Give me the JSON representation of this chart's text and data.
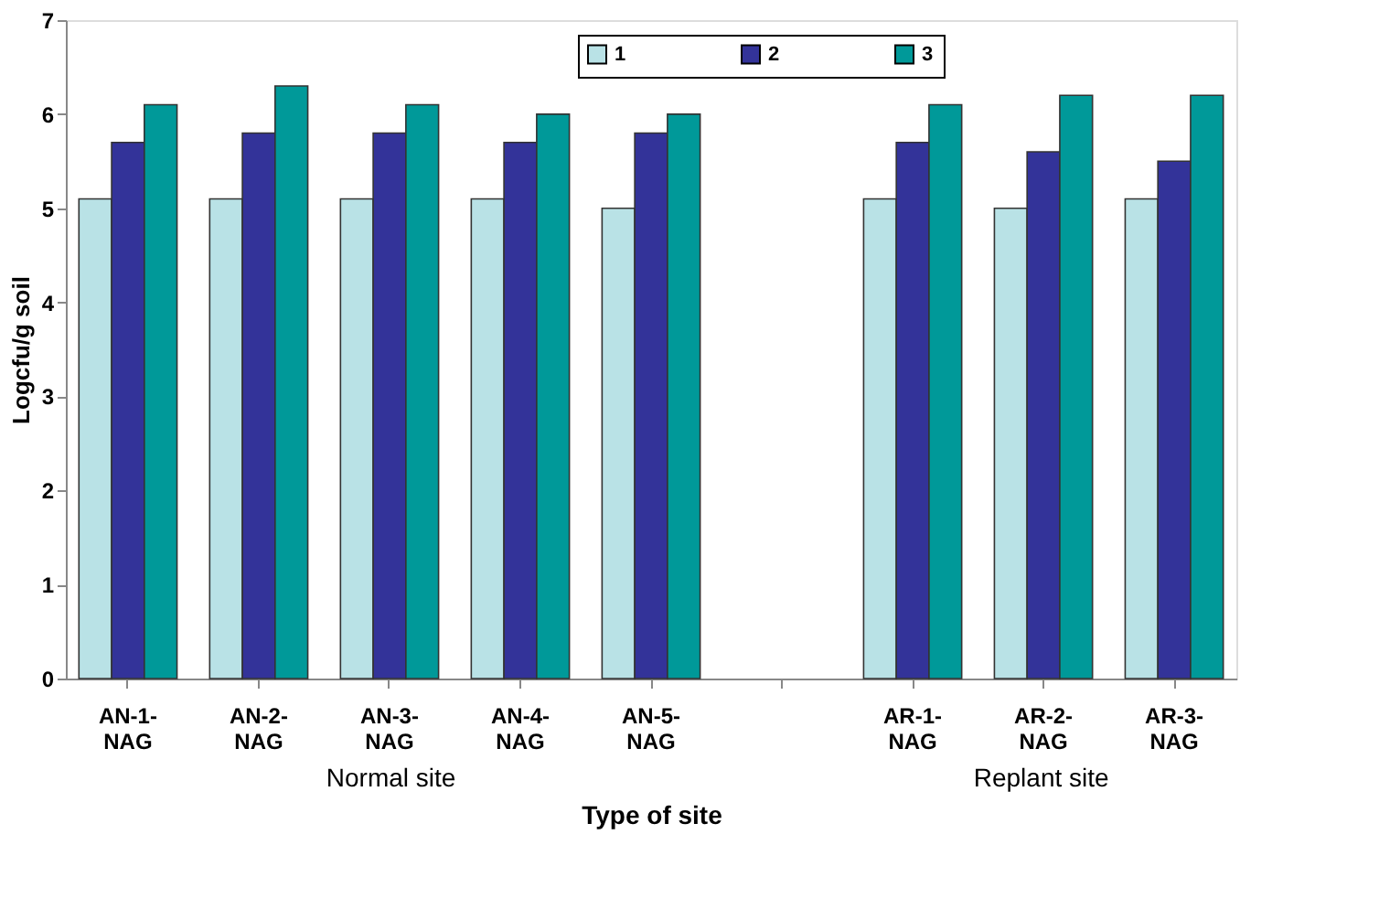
{
  "chart_data": {
    "type": "bar",
    "xlabel": "Type of site",
    "ylabel": "Logcfu/g soil",
    "categories": [
      "AN-1-NAG",
      "AN-2-NAG",
      "AN-3-NAG",
      "AN-4-NAG",
      "AN-5-NAG",
      null,
      "AR-1-NAG",
      "AR-2-NAG",
      "AR-3-NAG"
    ],
    "series": [
      {
        "name": "1",
        "color": "#b9e2e6",
        "values": [
          5.1,
          5.1,
          5.1,
          5.1,
          5.0,
          null,
          5.1,
          5.0,
          5.1
        ]
      },
      {
        "name": "2",
        "color": "#333399",
        "values": [
          5.7,
          5.8,
          5.8,
          5.7,
          5.8,
          null,
          5.7,
          5.6,
          5.5
        ]
      },
      {
        "name": "3",
        "color": "#009999",
        "values": [
          6.1,
          6.3,
          6.1,
          6.0,
          6.0,
          null,
          6.1,
          6.2,
          6.2
        ]
      }
    ],
    "ylim": [
      0,
      7
    ],
    "yticks": [
      0,
      1,
      2,
      3,
      4,
      5,
      6,
      7
    ],
    "grid": false,
    "legend": "top right",
    "annotations": [
      "Normal site",
      "Replant site"
    ]
  }
}
